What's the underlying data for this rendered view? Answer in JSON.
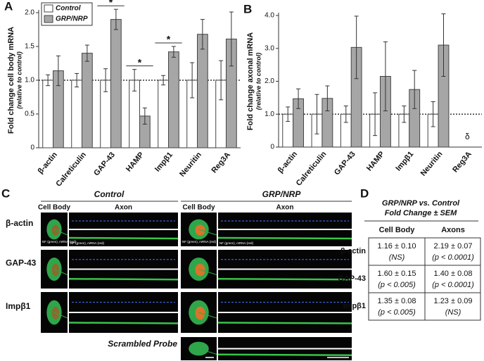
{
  "chart_data": [
    {
      "type": "bar",
      "panel": "A",
      "y_label": "Fold change cell body mRNA",
      "y_label_sub": "(relative to control)",
      "categories": [
        "β-actin",
        "Calreticulin",
        "GAP-43",
        "HAMP",
        "Impβ1",
        "Neuritin",
        "Reg3A"
      ],
      "series": [
        {
          "name": "Control",
          "color": "#ffffff",
          "values": [
            1.0,
            1.0,
            1.0,
            1.0,
            1.0,
            1.0,
            1.0
          ],
          "errors": [
            0.08,
            0.1,
            0.17,
            0.16,
            0.07,
            0.26,
            0.29
          ]
        },
        {
          "name": "GRP/NRP",
          "color": "#a6a6a6",
          "values": [
            1.14,
            1.4,
            1.9,
            0.47,
            1.42,
            1.68,
            1.61
          ],
          "errors": [
            0.22,
            0.12,
            0.15,
            0.12,
            0.08,
            0.22,
            0.4
          ]
        }
      ],
      "ylim": [
        0,
        2.0
      ],
      "yticks": [
        0,
        0.5,
        {
          "value": 1.0,
          "label": "1.0"
        },
        1.5,
        {
          "value": 2.0,
          "label": "2.0"
        }
      ],
      "reference_line": 1.0,
      "legend": true,
      "legend_position": "upper-left",
      "annotations": [
        {
          "text": "*",
          "category": "GAP-43",
          "bracket": true
        },
        {
          "text": "*",
          "category": "HAMP",
          "bracket": true
        },
        {
          "text": "*",
          "category": "Impβ1",
          "bracket": true
        }
      ]
    },
    {
      "type": "bar",
      "panel": "B",
      "y_label": "Fold change axonal mRNA",
      "y_label_sub": "(relative to control)",
      "categories": [
        "β-actin",
        "Calreticulin",
        "GAP-43",
        "HAMP",
        "Impβ1",
        "Neuritin",
        "Reg3A"
      ],
      "series": [
        {
          "name": "Control",
          "color": "#ffffff",
          "values": [
            1.0,
            1.0,
            1.0,
            1.0,
            1.0,
            1.0,
            null
          ],
          "errors": [
            0.22,
            0.6,
            0.25,
            0.65,
            0.25,
            0.38,
            null
          ]
        },
        {
          "name": "GRP/NRP",
          "color": "#a6a6a6",
          "values": [
            1.47,
            1.48,
            3.03,
            2.15,
            1.75,
            3.1,
            null
          ],
          "errors": [
            0.3,
            0.38,
            0.95,
            1.05,
            0.58,
            0.95,
            null
          ]
        }
      ],
      "ylim": [
        0,
        4.0
      ],
      "yticks": [
        0,
        {
          "value": 1.0,
          "label": "1.0"
        },
        {
          "value": 2.0,
          "label": "2.0"
        },
        {
          "value": 3.0,
          "label": "3.0"
        },
        {
          "value": 4.0,
          "label": "4.0"
        }
      ],
      "reference_line": 1.0,
      "legend": false,
      "annotations": [
        {
          "text": "δ",
          "category": "Reg3A",
          "bracket": false
        }
      ]
    }
  ],
  "panel_c": {
    "label": "C",
    "conditions": [
      "Control",
      "GRP/NRP"
    ],
    "cell_body": "Cell Body",
    "axon": "Axon",
    "rows": [
      "β-actin",
      "GAP-43",
      "Impβ1",
      "Scrambled Probe"
    ],
    "image_caption": "NF (green), mRNA (red)"
  },
  "panel_d": {
    "label": "D",
    "title": "GRP/NRP vs. Control",
    "subtitle": "Fold Change ± SEM",
    "columns": [
      "Cell Body",
      "Axons"
    ],
    "rows": [
      {
        "name": "β-actin",
        "cells": [
          [
            "1.16 ± 0.10",
            "(NS)"
          ],
          [
            "2.19 ± 0.07",
            "(p < 0.0001)"
          ]
        ]
      },
      {
        "name": "GAP-43",
        "cells": [
          [
            "1.60 ± 0.15",
            "(p < 0.005)"
          ],
          [
            "1.40 ± 0.08",
            "(p < 0.0001)"
          ]
        ]
      },
      {
        "name": "Impβ1",
        "cells": [
          [
            "1.35 ± 0.08",
            "(p < 0.005)"
          ],
          [
            "1.23 ± 0.09",
            "(NS)"
          ]
        ]
      }
    ]
  }
}
